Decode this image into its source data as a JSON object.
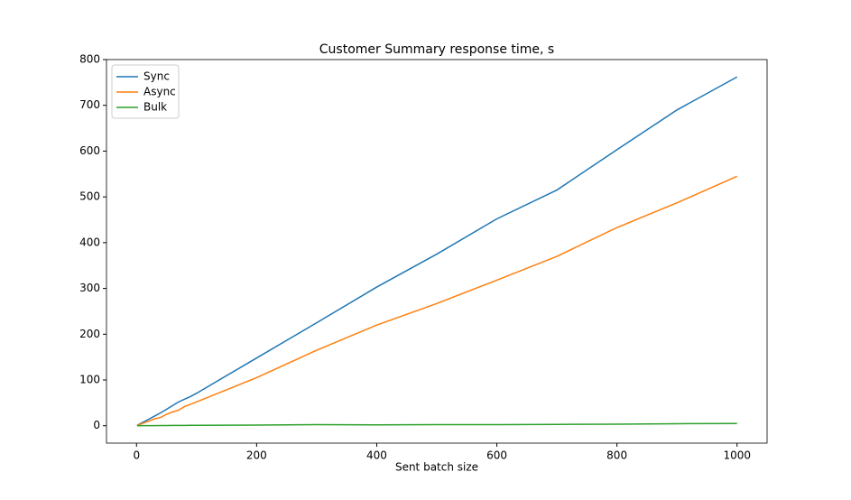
{
  "chart_data": {
    "type": "line",
    "title": "Customer Summary response time, s",
    "x_label": "Sent batch size",
    "x": [
      1,
      10,
      20,
      30,
      40,
      50,
      60,
      70,
      80,
      90,
      100,
      200,
      300,
      400,
      500,
      600,
      700,
      800,
      900,
      1000
    ],
    "series": [
      {
        "name": "Sync",
        "color": "#1f77b4",
        "values": [
          0.8,
          7,
          14,
          21,
          28,
          36,
          44,
          52,
          58,
          64,
          71,
          148,
          225,
          303,
          375,
          452,
          515,
          603,
          690,
          762
        ]
      },
      {
        "name": "Async",
        "color": "#ff7f0e",
        "values": [
          0.6,
          5,
          10,
          15,
          18,
          25,
          30,
          34,
          42,
          47,
          52,
          105,
          165,
          220,
          267,
          318,
          370,
          433,
          487,
          545
        ]
      },
      {
        "name": "Bulk",
        "color": "#2ca02c",
        "values": [
          0,
          0.1,
          0.2,
          0.3,
          0.4,
          0.5,
          0.6,
          0.7,
          0.8,
          0.9,
          1,
          1.5,
          2.5,
          2,
          2.5,
          2.5,
          3,
          3.5,
          4.5,
          5
        ]
      }
    ],
    "xlim": [
      -50,
      1050
    ],
    "xticks": [
      0,
      200,
      400,
      600,
      800,
      1000
    ],
    "ylim": [
      -38,
      800
    ],
    "yticks": [
      0,
      100,
      200,
      300,
      400,
      500,
      600,
      700,
      800
    ],
    "legend": "upper left",
    "grid": false
  }
}
